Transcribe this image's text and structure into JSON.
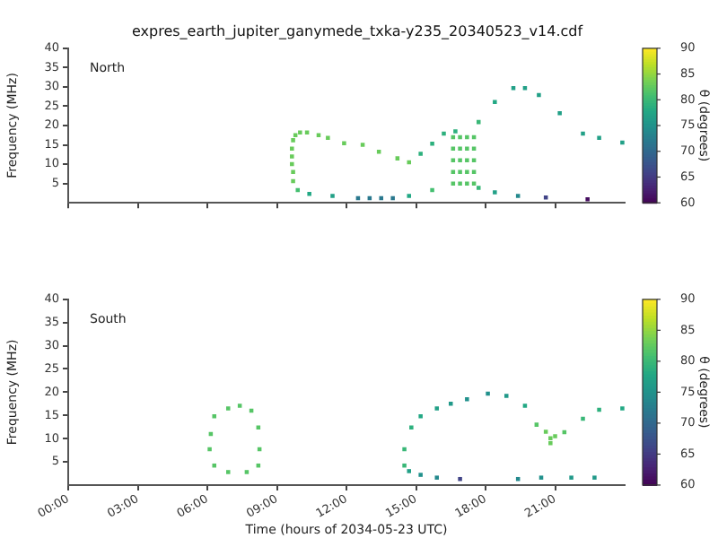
{
  "chart_data": [
    {
      "type": "scatter",
      "title": "expres_earth_jupiter_ganymede_txka-y235_20340523_v14.cdf",
      "ylabel": "Frequency (MHz)",
      "clabel": "θ (degrees)",
      "annotations": [
        "North"
      ],
      "marker": "square",
      "tick_labels": "y",
      "xlim": [
        0,
        24
      ],
      "xticks": [
        {
          "value": 0,
          "label": null
        },
        {
          "value": 3,
          "label": null
        },
        {
          "value": 6,
          "label": null
        },
        {
          "value": 9,
          "label": null
        },
        {
          "value": 12,
          "label": null
        },
        {
          "value": 15,
          "label": null
        },
        {
          "value": 18,
          "label": null
        },
        {
          "value": 21,
          "label": null
        }
      ],
      "ylim": [
        0,
        40
      ],
      "yticks": [
        5,
        10,
        15,
        20,
        25,
        30,
        35,
        40
      ],
      "clim": [
        60,
        90
      ],
      "cticks": [
        60,
        65,
        70,
        75,
        80,
        85,
        90
      ],
      "series": [
        {
          "x": [
            9.7,
            9.7,
            9.65,
            9.65,
            9.65,
            9.7,
            9.8,
            10.0,
            10.3,
            10.8,
            11.2,
            11.9,
            12.7,
            13.4,
            14.2,
            14.7,
            15.2,
            15.7,
            16.2,
            16.7,
            17.7,
            18.4,
            19.2,
            19.7,
            20.3,
            21.2,
            22.2,
            22.9,
            23.9,
            9.9,
            10.4,
            11.4,
            12.5,
            13.0,
            13.5,
            14.0,
            14.7,
            15.7,
            17.7,
            18.4,
            19.4,
            20.6,
            22.4,
            16.6,
            16.6,
            16.6,
            16.6,
            16.6,
            16.9,
            16.9,
            16.9,
            16.9,
            16.9,
            17.2,
            17.2,
            17.2,
            17.2,
            17.2,
            17.5,
            17.5,
            17.5,
            17.5,
            17.5
          ],
          "values": [
            5.6,
            8,
            10,
            12,
            14,
            16.2,
            17.5,
            18.2,
            18.2,
            17.5,
            16.8,
            15.4,
            15.0,
            13.2,
            11.5,
            10.5,
            12.7,
            15.3,
            17.9,
            18.5,
            20.9,
            26.1,
            29.7,
            29.7,
            27.9,
            23.2,
            17.9,
            16.8,
            15.6,
            3.3,
            2.3,
            1.8,
            1.2,
            1.2,
            1.2,
            1.2,
            1.8,
            3.3,
            3.9,
            2.7,
            1.8,
            1.4,
            0.9,
            5,
            8,
            11,
            14,
            17,
            5,
            8,
            11,
            14,
            17,
            5,
            8,
            11,
            14,
            17,
            5,
            8,
            11,
            14,
            17
          ],
          "cvalues": [
            83,
            83,
            83,
            83,
            83,
            83,
            83,
            83,
            83,
            83,
            83,
            83,
            83,
            83,
            83,
            83,
            79,
            79,
            79,
            79,
            80,
            78,
            77,
            77,
            77,
            77,
            77,
            77,
            77,
            81,
            78,
            77,
            72,
            72,
            72,
            72,
            78,
            81,
            80,
            77,
            74,
            66,
            61,
            82,
            82,
            82,
            82,
            82,
            82,
            82,
            82,
            82,
            82,
            82,
            82,
            82,
            82,
            82,
            82,
            82,
            82,
            82,
            82
          ]
        }
      ]
    },
    {
      "type": "scatter",
      "xlabel": "Time (hours of 2034-05-23 UTC)",
      "ylabel": "Frequency (MHz)",
      "clabel": "θ (degrees)",
      "annotations": [
        "South"
      ],
      "marker": "square",
      "xlim": [
        0,
        24
      ],
      "xticks": [
        {
          "value": 0,
          "label": "00:00"
        },
        {
          "value": 3,
          "label": "03:00"
        },
        {
          "value": 6,
          "label": "06:00"
        },
        {
          "value": 9,
          "label": "09:00"
        },
        {
          "value": 12,
          "label": "12:00"
        },
        {
          "value": 15,
          "label": "15:00"
        },
        {
          "value": 18,
          "label": "18:00"
        },
        {
          "value": 21,
          "label": "21:00"
        }
      ],
      "ylim": [
        0,
        40
      ],
      "yticks": [
        5,
        10,
        15,
        20,
        25,
        30,
        35,
        40
      ],
      "clim": [
        60,
        90
      ],
      "cticks": [
        60,
        65,
        70,
        75,
        80,
        85,
        90
      ],
      "series": [
        {
          "x": [
            6.1,
            6.15,
            6.3,
            6.9,
            7.4,
            7.9,
            8.2,
            8.25,
            8.2,
            7.7,
            6.9,
            6.3,
            14.5,
            14.5,
            14.8,
            15.2,
            15.9,
            16.5,
            17.2,
            18.1,
            18.9,
            19.7,
            20.2,
            20.6,
            20.8,
            20.8,
            21.0,
            21.4,
            22.2,
            22.9,
            23.9,
            14.7,
            15.2,
            15.9,
            16.9,
            19.4,
            20.4,
            21.7,
            22.7
          ],
          "values": [
            7.7,
            11,
            14.8,
            16.5,
            17.1,
            16.0,
            12.4,
            7.7,
            4.2,
            2.8,
            2.8,
            4.2,
            4.2,
            7.7,
            12.4,
            14.8,
            16.5,
            17.5,
            18.5,
            19.7,
            19.2,
            17.1,
            13.0,
            11.5,
            10.1,
            9.0,
            10.5,
            11.4,
            14.3,
            16.2,
            16.5,
            3.0,
            2.2,
            1.6,
            1.3,
            1.3,
            1.6,
            1.6,
            1.6
          ],
          "cvalues": [
            82,
            82,
            82,
            82,
            82,
            82,
            82,
            82,
            82,
            82,
            82,
            82,
            80,
            80,
            79,
            78,
            77,
            76,
            75,
            75,
            76,
            78,
            82,
            83,
            83,
            83,
            83,
            82,
            80,
            79,
            78,
            77,
            75,
            74,
            66,
            74,
            75,
            76,
            76
          ]
        }
      ]
    }
  ]
}
